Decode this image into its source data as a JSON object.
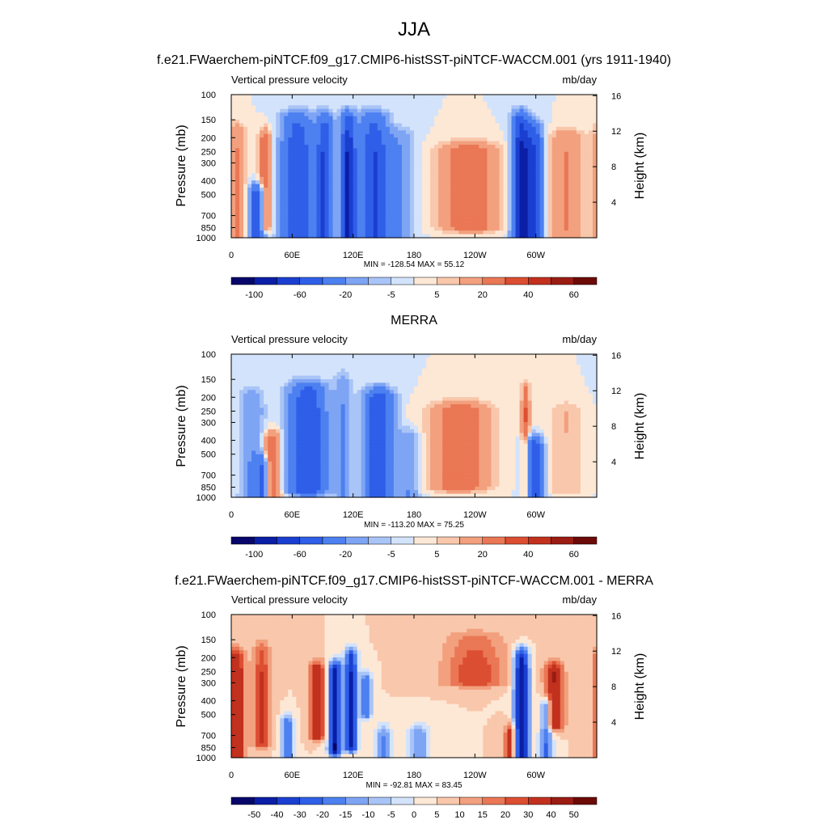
{
  "title": "JJA",
  "chart_data": [
    {
      "type": "heatmap",
      "title": "f.e21.FWaerchem-piNTCF.f09_g17.CMIP6-histSST-piNTCF-WACCM.001 (yrs 1911-1940)",
      "subtitle_left": "Vertical pressure velocity",
      "subtitle_right": "mb/day",
      "ylabel": "Pressure (mb)",
      "ylabel_right": "Height (km)",
      "x_ticks": [
        "0",
        "60E",
        "120E",
        "180",
        "120W",
        "60W"
      ],
      "y_ticks": [
        "100",
        "150",
        "200",
        "250",
        "300",
        "400",
        "500",
        "700",
        "850",
        "1000"
      ],
      "y_right_ticks": [
        "16",
        "12",
        "8",
        "4"
      ],
      "min_max_label": "MIN = -128.54  MAX =  55.12",
      "colorbar_levels": [
        -100,
        -80,
        -60,
        -40,
        -20,
        -10,
        -5,
        0,
        5,
        10,
        20,
        30,
        40,
        50,
        60,
        80
      ],
      "colorbar_labels": [
        "-100",
        "-60",
        "-20",
        "-5",
        "5",
        "20",
        "40",
        "60"
      ],
      "stats": {
        "min": -128.54,
        "max": 55.12
      },
      "features": [
        {
          "lon": 5,
          "p_top": 180,
          "p_bot": 1000,
          "value": 20,
          "w": 9
        },
        {
          "lon": 25,
          "p_top": 500,
          "p_bot": 1000,
          "value": -60,
          "w": 7
        },
        {
          "lon": 33,
          "p_top": 200,
          "p_bot": 850,
          "value": 30,
          "w": 6
        },
        {
          "lon": 65,
          "p_top": 150,
          "p_bot": 1000,
          "value": -60,
          "w": 15
        },
        {
          "lon": 92,
          "p_top": 150,
          "p_bot": 1000,
          "value": -60,
          "w": 8
        },
        {
          "lon": 115,
          "p_top": 150,
          "p_bot": 1000,
          "value": -80,
          "w": 7
        },
        {
          "lon": 140,
          "p_top": 150,
          "p_bot": 1000,
          "value": -60,
          "w": 14
        },
        {
          "lon": 165,
          "p_top": 200,
          "p_bot": 1000,
          "value": -20,
          "w": 14
        },
        {
          "lon": 235,
          "p_top": 250,
          "p_bot": 850,
          "value": 30,
          "w": 28
        },
        {
          "lon": 285,
          "p_top": 150,
          "p_bot": 1000,
          "value": -80,
          "w": 8
        },
        {
          "lon": 298,
          "p_top": 180,
          "p_bot": 1000,
          "value": -60,
          "w": 9
        },
        {
          "lon": 330,
          "p_top": 200,
          "p_bot": 1000,
          "value": 20,
          "w": 18
        }
      ]
    },
    {
      "type": "heatmap",
      "title": "MERRA",
      "subtitle_left": "Vertical pressure velocity",
      "subtitle_right": "mb/day",
      "ylabel": "Pressure (mb)",
      "ylabel_right": "Height (km)",
      "x_ticks": [
        "0",
        "60E",
        "120E",
        "180",
        "120W",
        "60W"
      ],
      "y_ticks": [
        "100",
        "150",
        "200",
        "250",
        "300",
        "400",
        "500",
        "700",
        "850",
        "1000"
      ],
      "y_right_ticks": [
        "16",
        "12",
        "8",
        "4"
      ],
      "min_max_label": "MIN = -113.20  MAX =  75.25",
      "colorbar_levels": [
        -100,
        -80,
        -60,
        -40,
        -20,
        -10,
        -5,
        0,
        5,
        10,
        20,
        30,
        40,
        50,
        60,
        80
      ],
      "colorbar_labels": [
        "-100",
        "-60",
        "-20",
        "-5",
        "5",
        "20",
        "40",
        "60"
      ],
      "stats": {
        "min": -113.2,
        "max": 75.25
      },
      "features": [
        {
          "lon": 20,
          "p_top": 200,
          "p_bot": 1000,
          "value": -20,
          "w": 12
        },
        {
          "lon": 40,
          "p_top": 400,
          "p_bot": 1000,
          "value": 30,
          "w": 9
        },
        {
          "lon": 30,
          "p_top": 600,
          "p_bot": 1000,
          "value": -40,
          "w": 6
        },
        {
          "lon": 75,
          "p_top": 180,
          "p_bot": 900,
          "value": -60,
          "w": 18
        },
        {
          "lon": 110,
          "p_top": 150,
          "p_bot": 1000,
          "value": -20,
          "w": 8
        },
        {
          "lon": 145,
          "p_top": 200,
          "p_bot": 1000,
          "value": -60,
          "w": 14
        },
        {
          "lon": 175,
          "p_top": 400,
          "p_bot": 1000,
          "value": -20,
          "w": 10
        },
        {
          "lon": 225,
          "p_top": 250,
          "p_bot": 850,
          "value": 30,
          "w": 28
        },
        {
          "lon": 290,
          "p_top": 180,
          "p_bot": 1000,
          "value": 30,
          "w": 4
        },
        {
          "lon": 298,
          "p_top": 450,
          "p_bot": 1000,
          "value": -60,
          "w": 9
        },
        {
          "lon": 330,
          "p_top": 250,
          "p_bot": 900,
          "value": 10,
          "w": 18
        }
      ]
    },
    {
      "type": "heatmap",
      "title": "f.e21.FWaerchem-piNTCF.f09_g17.CMIP6-histSST-piNTCF-WACCM.001 - MERRA",
      "subtitle_left": "Vertical pressure velocity",
      "subtitle_right": "mb/day",
      "ylabel": "Pressure (mb)",
      "ylabel_right": "Height (km)",
      "x_ticks": [
        "0",
        "60E",
        "120E",
        "180",
        "120W",
        "60W"
      ],
      "y_ticks": [
        "100",
        "150",
        "200",
        "250",
        "300",
        "400",
        "500",
        "700",
        "850",
        "1000"
      ],
      "y_right_ticks": [
        "16",
        "12",
        "8",
        "4"
      ],
      "min_max_label": "MIN = -92.81  MAX =  83.45",
      "colorbar_levels": [
        -60,
        -50,
        -40,
        -30,
        -20,
        -15,
        -10,
        -5,
        0,
        5,
        10,
        15,
        20,
        30,
        40,
        50
      ],
      "colorbar_labels": [
        "-50",
        "-40",
        "-30",
        "-20",
        "-15",
        "-10",
        "-5",
        "0",
        "5",
        "10",
        "15",
        "20",
        "30",
        "40",
        "50"
      ],
      "stats": {
        "min": -92.81,
        "max": 83.45
      },
      "features": [
        {
          "lon": 5,
          "p_top": 200,
          "p_bot": 1000,
          "value": 30,
          "w": 8
        },
        {
          "lon": 30,
          "p_top": 180,
          "p_bot": 800,
          "value": 20,
          "w": 9
        },
        {
          "lon": 55,
          "p_top": 600,
          "p_bot": 1000,
          "value": -30,
          "w": 6
        },
        {
          "lon": 85,
          "p_top": 250,
          "p_bot": 700,
          "value": 30,
          "w": 8
        },
        {
          "lon": 102,
          "p_top": 250,
          "p_bot": 900,
          "value": -60,
          "w": 6
        },
        {
          "lon": 118,
          "p_top": 200,
          "p_bot": 850,
          "value": -50,
          "w": 6
        },
        {
          "lon": 133,
          "p_top": 300,
          "p_bot": 500,
          "value": -30,
          "w": 5
        },
        {
          "lon": 150,
          "p_top": 700,
          "p_bot": 1000,
          "value": -20,
          "w": 8
        },
        {
          "lon": 185,
          "p_top": 700,
          "p_bot": 1000,
          "value": -20,
          "w": 10
        },
        {
          "lon": 240,
          "p_top": 150,
          "p_bot": 300,
          "value": 20,
          "w": 30
        },
        {
          "lon": 286,
          "p_top": 200,
          "p_bot": 1000,
          "value": -60,
          "w": 7
        },
        {
          "lon": 310,
          "p_top": 450,
          "p_bot": 1000,
          "value": -30,
          "w": 6
        },
        {
          "lon": 318,
          "p_top": 250,
          "p_bot": 600,
          "value": 30,
          "w": 9
        },
        {
          "lon": 275,
          "p_top": 700,
          "p_bot": 1000,
          "value": 30,
          "w": 5
        }
      ]
    }
  ]
}
